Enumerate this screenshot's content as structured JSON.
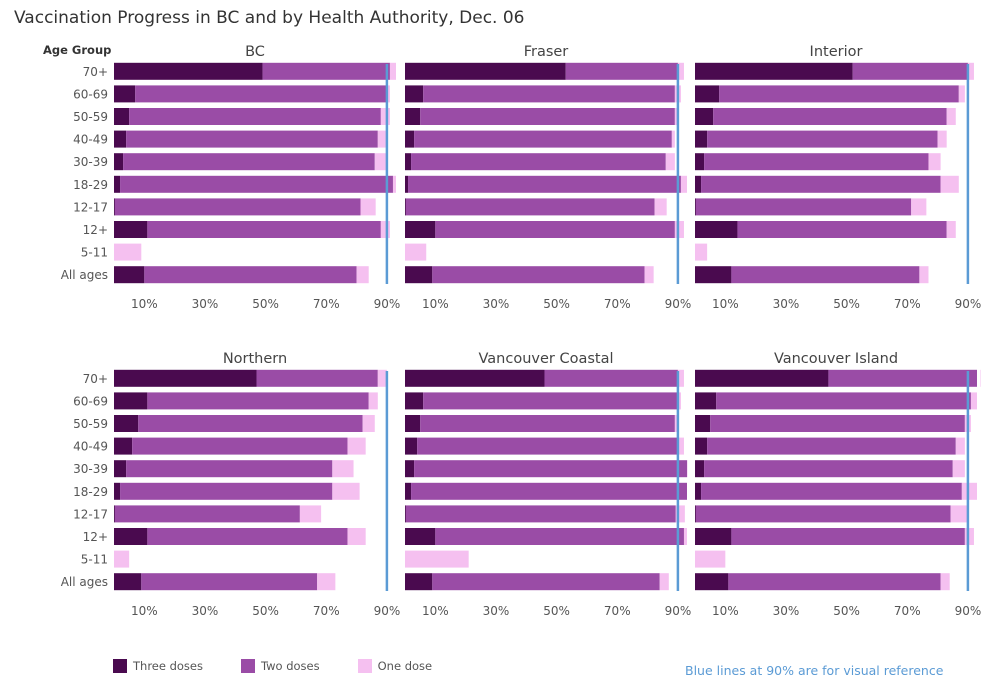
{
  "title": "Vaccination Progress in BC and by Health Authority, Dec. 06",
  "legend": {
    "items": [
      {
        "label": "Three doses",
        "color": "#4a0a4f"
      },
      {
        "label": "Two doses",
        "color": "#9a4ca6"
      },
      {
        "label": "One dose",
        "color": "#f5c0f0"
      }
    ]
  },
  "note": {
    "text": "Blue lines at 90% are for visual reference",
    "color": "#5b9bd5"
  },
  "chart_data": {
    "type": "bar",
    "stacked": true,
    "orientation": "horizontal",
    "row_header": "Age Group",
    "categories": [
      "70+",
      "60-69",
      "50-59",
      "40-49",
      "30-39",
      "18-29",
      "12-17",
      "12+",
      "5-11",
      "All ages"
    ],
    "x_ticks": [
      "10%",
      "30%",
      "50%",
      "70%",
      "90%"
    ],
    "xlim": [
      0,
      93
    ],
    "reference_line": {
      "value": 90,
      "color": "#5b9bd5"
    },
    "series_colors": {
      "three": "#4a0a4f",
      "two": "#9a4ca6",
      "one": "#f5c0f0"
    },
    "panels": [
      {
        "title": "BC",
        "three": [
          49,
          7,
          5,
          4,
          3,
          2,
          0.3,
          11,
          0,
          10
        ],
        "two": [
          42,
          83,
          83,
          83,
          83,
          90,
          81,
          77,
          0,
          70
        ],
        "one": [
          2,
          1,
          3,
          3,
          4,
          5,
          5,
          3,
          9,
          4
        ]
      },
      {
        "title": "Fraser",
        "three": [
          53,
          6,
          5,
          3,
          2,
          1,
          0.3,
          10,
          0,
          9
        ],
        "two": [
          37,
          83,
          84,
          85,
          84,
          90,
          82,
          79,
          0,
          70
        ],
        "one": [
          2,
          2,
          1,
          1,
          3,
          5,
          4,
          3,
          7,
          3
        ]
      },
      {
        "title": "Interior",
        "three": [
          52,
          8,
          6,
          4,
          3,
          2,
          0.3,
          14,
          0,
          12
        ],
        "two": [
          38,
          79,
          77,
          76,
          74,
          79,
          71,
          69,
          0,
          62
        ],
        "one": [
          2,
          2,
          3,
          3,
          4,
          6,
          5,
          3,
          4,
          3
        ]
      },
      {
        "title": "Northern",
        "three": [
          47,
          11,
          8,
          6,
          4,
          2,
          0.3,
          11,
          0,
          9
        ],
        "two": [
          40,
          73,
          74,
          71,
          68,
          70,
          61,
          66,
          0,
          58
        ],
        "one": [
          3,
          3,
          4,
          6,
          7,
          9,
          7,
          6,
          5,
          6
        ]
      },
      {
        "title": "Vancouver Coastal",
        "three": [
          46,
          6,
          5,
          4,
          3,
          2,
          0.3,
          10,
          0,
          9
        ],
        "two": [
          44,
          84,
          84,
          86,
          90,
          98,
          89,
          82,
          0,
          75
        ],
        "one": [
          2,
          1,
          1,
          2,
          3,
          0,
          3,
          3,
          21,
          3
        ]
      },
      {
        "title": "Vancouver Island",
        "three": [
          44,
          7,
          5,
          4,
          3,
          2,
          0.3,
          12,
          0,
          11
        ],
        "two": [
          50,
          84,
          84,
          82,
          82,
          86,
          84,
          77,
          0,
          70
        ],
        "one": [
          2,
          2,
          2,
          3,
          4,
          6,
          6,
          3,
          10,
          3
        ]
      }
    ]
  }
}
